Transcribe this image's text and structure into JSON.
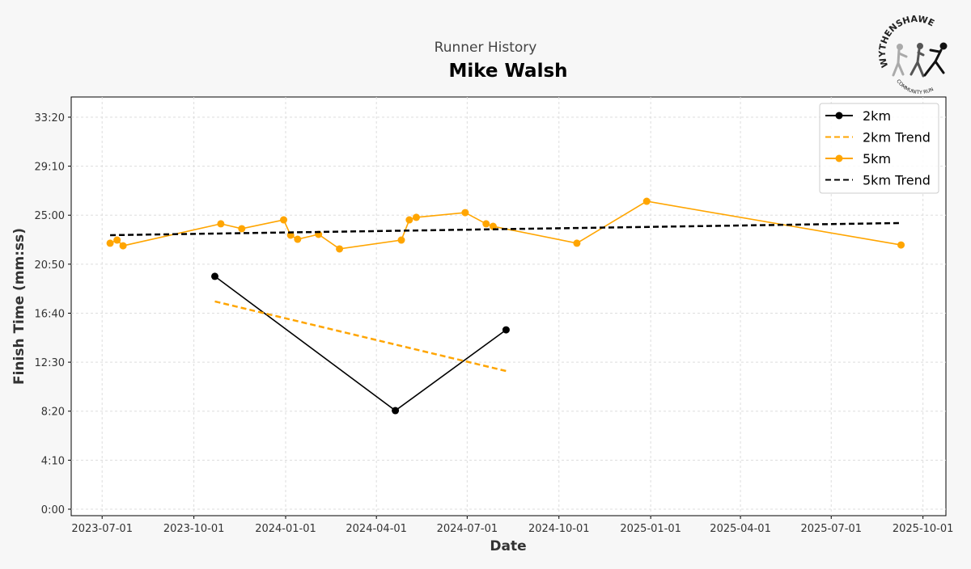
{
  "chart_data": {
    "type": "line",
    "suptitle": "Runner History",
    "title": "Mike Walsh",
    "xlabel": "Date",
    "ylabel": "Finish Time (mm:ss)",
    "xlim": [
      "2023-05-31",
      "2025-10-24"
    ],
    "ylim": [
      -33,
      2103
    ],
    "grid": true,
    "legend_placement": "top-right",
    "xticks": [
      "2023-07-01",
      "2023-10-01",
      "2024-01-01",
      "2024-04-01",
      "2024-07-01",
      "2024-10-01",
      "2025-01-01",
      "2025-04-01",
      "2025-07-01",
      "2025-10-01"
    ],
    "yticks": [
      0,
      250,
      500,
      750,
      1000,
      1250,
      1500,
      1750,
      2000
    ],
    "ytick_labels": [
      "0:00",
      "4:10",
      "8:20",
      "12:30",
      "16:40",
      "20:50",
      "25:00",
      "29:10",
      "33:20"
    ],
    "series": [
      {
        "name": "2km",
        "color": "#000000",
        "style": "solid",
        "markers": true,
        "x": [
          "2023-10-22",
          "2024-04-20",
          "2024-08-09"
        ],
        "y": [
          1188,
          503,
          915
        ]
      },
      {
        "name": "2km Trend",
        "color": "#FFA500",
        "style": "dashed",
        "markers": false,
        "x": [
          "2023-10-22",
          "2024-08-09"
        ],
        "y": [
          1060,
          705
        ]
      },
      {
        "name": "5km",
        "color": "#FFA500",
        "style": "solid",
        "markers": true,
        "x": [
          "2023-07-09",
          "2023-07-16",
          "2023-07-22",
          "2023-10-28",
          "2023-11-18",
          "2023-12-30",
          "2024-01-06",
          "2024-01-13",
          "2024-02-03",
          "2024-02-24",
          "2024-04-26",
          "2024-05-04",
          "2024-05-11",
          "2024-06-29",
          "2024-07-20",
          "2024-07-27",
          "2024-10-19",
          "2024-12-28",
          "2025-09-09"
        ],
        "y": [
          1357,
          1373,
          1344,
          1456,
          1431,
          1476,
          1398,
          1377,
          1402,
          1328,
          1373,
          1476,
          1489,
          1513,
          1456,
          1443,
          1357,
          1571,
          1348
        ]
      },
      {
        "name": "5km Trend",
        "color": "#000000",
        "style": "dashed",
        "markers": false,
        "x": [
          "2023-07-09",
          "2025-09-09"
        ],
        "y": [
          1398,
          1460
        ]
      }
    ]
  },
  "logo": {
    "text_top": "WYTHENSHAWE",
    "text_bottom": "COMMUNITY RUN"
  }
}
